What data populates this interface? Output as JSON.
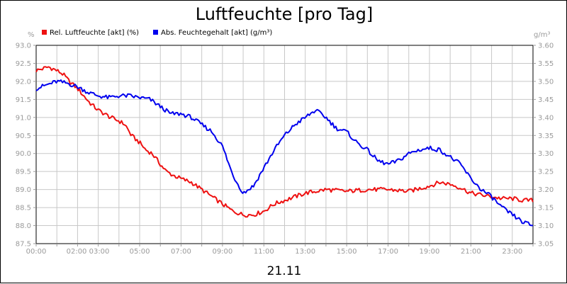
{
  "chart_data": {
    "type": "line",
    "title": "Luftfeuchte [pro Tag]",
    "x_caption": "21.11",
    "left_unit": "%",
    "right_unit": "g/m³",
    "legend_position": "top-left",
    "grid": true,
    "x_range": [
      0,
      24
    ],
    "x_ticks": [
      {
        "label": "00:00",
        "x": 0
      },
      {
        "label": "02:00 03:00",
        "x": 2.5
      },
      {
        "label": "05:00",
        "x": 5
      },
      {
        "label": "07:00",
        "x": 7
      },
      {
        "label": "09:00",
        "x": 9
      },
      {
        "label": "11:00",
        "x": 11
      },
      {
        "label": "13:00",
        "x": 13
      },
      {
        "label": "15:00",
        "x": 15
      },
      {
        "label": "17:00",
        "x": 17
      },
      {
        "label": "19:00",
        "x": 19
      },
      {
        "label": "21:00",
        "x": 21
      },
      {
        "label": "23:00",
        "x": 23
      }
    ],
    "y_left": {
      "range": [
        87.5,
        93.0
      ],
      "ticks": [
        "87.5",
        "88.0",
        "88.5",
        "89.0",
        "89.5",
        "90.0",
        "90.5",
        "91.0",
        "91.5",
        "92.0",
        "92.5",
        "93.0"
      ]
    },
    "y_right": {
      "range": [
        3.05,
        3.6
      ],
      "ticks": [
        "3.05",
        "3.10",
        "3.15",
        "3.20",
        "3.25",
        "3.30",
        "3.35",
        "3.40",
        "3.45",
        "3.50",
        "3.55",
        "3.60"
      ]
    },
    "series": [
      {
        "name": "Rel. Luftfeuchte [akt] (%)",
        "color": "#ee1111",
        "axis": "left",
        "points": [
          [
            0,
            92.3
          ],
          [
            0.3,
            92.35
          ],
          [
            0.6,
            92.4
          ],
          [
            1.0,
            92.3
          ],
          [
            1.3,
            92.2
          ],
          [
            1.6,
            92.0
          ],
          [
            2.0,
            91.8
          ],
          [
            2.3,
            91.6
          ],
          [
            2.6,
            91.4
          ],
          [
            3.0,
            91.2
          ],
          [
            3.3,
            91.1
          ],
          [
            3.6,
            91.0
          ],
          [
            4.0,
            90.9
          ],
          [
            4.3,
            90.8
          ],
          [
            4.6,
            90.5
          ],
          [
            5.0,
            90.3
          ],
          [
            5.3,
            90.1
          ],
          [
            5.6,
            90.0
          ],
          [
            6.0,
            89.7
          ],
          [
            6.3,
            89.5
          ],
          [
            6.6,
            89.4
          ],
          [
            7.0,
            89.3
          ],
          [
            7.5,
            89.2
          ],
          [
            8.0,
            89.0
          ],
          [
            8.5,
            88.8
          ],
          [
            9.0,
            88.6
          ],
          [
            9.5,
            88.4
          ],
          [
            10.0,
            88.3
          ],
          [
            10.5,
            88.3
          ],
          [
            11.0,
            88.4
          ],
          [
            11.5,
            88.6
          ],
          [
            12.0,
            88.7
          ],
          [
            12.5,
            88.8
          ],
          [
            13.0,
            88.9
          ],
          [
            14.0,
            89.0
          ],
          [
            15.0,
            88.95
          ],
          [
            16.0,
            89.0
          ],
          [
            17.0,
            89.0
          ],
          [
            18.0,
            88.95
          ],
          [
            19.0,
            89.1
          ],
          [
            19.5,
            89.2
          ],
          [
            20.0,
            89.15
          ],
          [
            20.5,
            89.05
          ],
          [
            21.0,
            88.9
          ],
          [
            21.5,
            88.85
          ],
          [
            22.0,
            88.8
          ],
          [
            22.5,
            88.75
          ],
          [
            23.0,
            88.75
          ],
          [
            23.5,
            88.7
          ],
          [
            24.0,
            88.7
          ]
        ]
      },
      {
        "name": "Abs. Feuchtegehalt [akt] (g/m³)",
        "color": "#0000ee",
        "axis": "right",
        "points": [
          [
            0,
            3.48
          ],
          [
            0.5,
            3.49
          ],
          [
            1.0,
            3.5
          ],
          [
            1.5,
            3.495
          ],
          [
            2.0,
            3.485
          ],
          [
            2.5,
            3.47
          ],
          [
            3.0,
            3.46
          ],
          [
            3.5,
            3.455
          ],
          [
            4.0,
            3.46
          ],
          [
            4.5,
            3.46
          ],
          [
            5.0,
            3.455
          ],
          [
            5.5,
            3.45
          ],
          [
            6.0,
            3.43
          ],
          [
            6.5,
            3.41
          ],
          [
            7.0,
            3.41
          ],
          [
            7.5,
            3.4
          ],
          [
            8.0,
            3.38
          ],
          [
            8.5,
            3.36
          ],
          [
            9.0,
            3.32
          ],
          [
            9.5,
            3.24
          ],
          [
            10.0,
            3.19
          ],
          [
            10.5,
            3.21
          ],
          [
            11.0,
            3.26
          ],
          [
            11.5,
            3.31
          ],
          [
            12.0,
            3.35
          ],
          [
            12.5,
            3.38
          ],
          [
            13.0,
            3.4
          ],
          [
            13.5,
            3.42
          ],
          [
            14.0,
            3.4
          ],
          [
            14.5,
            3.37
          ],
          [
            15.0,
            3.36
          ],
          [
            15.5,
            3.33
          ],
          [
            16.0,
            3.31
          ],
          [
            16.5,
            3.28
          ],
          [
            17.0,
            3.27
          ],
          [
            17.5,
            3.28
          ],
          [
            18.0,
            3.3
          ],
          [
            18.5,
            3.31
          ],
          [
            19.0,
            3.315
          ],
          [
            19.5,
            3.31
          ],
          [
            20.0,
            3.29
          ],
          [
            20.5,
            3.27
          ],
          [
            21.0,
            3.23
          ],
          [
            21.5,
            3.2
          ],
          [
            22.0,
            3.18
          ],
          [
            22.5,
            3.15
          ],
          [
            23.0,
            3.13
          ],
          [
            23.5,
            3.11
          ],
          [
            24.0,
            3.1
          ]
        ]
      }
    ]
  }
}
